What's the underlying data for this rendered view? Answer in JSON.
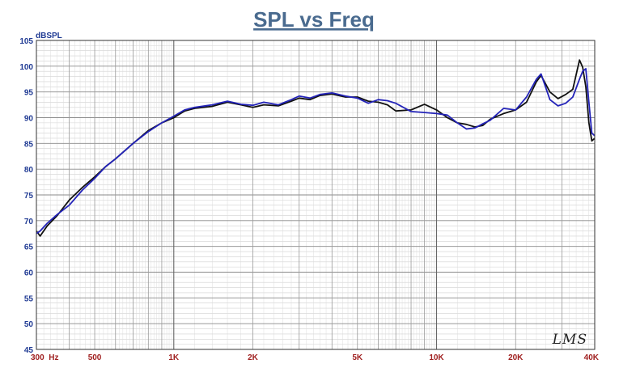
{
  "chart_data": {
    "type": "line",
    "title": "SPL vs Freq",
    "ylabel": "dBSPL",
    "xlabel": "",
    "x_scale": "log",
    "xlim": [
      300,
      40000
    ],
    "ylim": [
      45,
      105
    ],
    "y_ticks": [
      45,
      50,
      55,
      60,
      65,
      70,
      75,
      80,
      85,
      90,
      95,
      100,
      105
    ],
    "x_tick_labels": [
      {
        "value": 300,
        "label": "300  Hz"
      },
      {
        "value": 500,
        "label": "500"
      },
      {
        "value": 1000,
        "label": "1K"
      },
      {
        "value": 2000,
        "label": "2K"
      },
      {
        "value": 5000,
        "label": "5K"
      },
      {
        "value": 10000,
        "label": "10K"
      },
      {
        "value": 20000,
        "label": "20K"
      },
      {
        "value": 40000,
        "label": "40K"
      }
    ],
    "grid": true,
    "watermark": "LMS",
    "series": [
      {
        "color": "#111111",
        "points": [
          [
            300,
            68
          ],
          [
            310,
            67
          ],
          [
            330,
            69
          ],
          [
            360,
            71
          ],
          [
            400,
            74
          ],
          [
            450,
            76.5
          ],
          [
            500,
            78.5
          ],
          [
            550,
            80.5
          ],
          [
            600,
            82
          ],
          [
            700,
            85
          ],
          [
            800,
            87.5
          ],
          [
            900,
            89
          ],
          [
            1000,
            90
          ],
          [
            1100,
            91.3
          ],
          [
            1200,
            91.8
          ],
          [
            1400,
            92.2
          ],
          [
            1600,
            93
          ],
          [
            1800,
            92.5
          ],
          [
            2000,
            92
          ],
          [
            2200,
            92.5
          ],
          [
            2500,
            92.3
          ],
          [
            2800,
            93.2
          ],
          [
            3000,
            93.8
          ],
          [
            3300,
            93.5
          ],
          [
            3600,
            94.3
          ],
          [
            4000,
            94.6
          ],
          [
            4500,
            94
          ],
          [
            5000,
            94
          ],
          [
            5500,
            93.2
          ],
          [
            6000,
            93
          ],
          [
            6500,
            92.5
          ],
          [
            7000,
            91.3
          ],
          [
            8000,
            91.5
          ],
          [
            9000,
            92.6
          ],
          [
            10000,
            91.5
          ],
          [
            11000,
            90
          ],
          [
            12000,
            89
          ],
          [
            13000,
            88.7
          ],
          [
            14000,
            88.2
          ],
          [
            15000,
            88.5
          ],
          [
            16000,
            89.7
          ],
          [
            18000,
            90.8
          ],
          [
            20000,
            91.5
          ],
          [
            22000,
            93
          ],
          [
            24000,
            97
          ],
          [
            25000,
            98.2
          ],
          [
            27000,
            95
          ],
          [
            29000,
            93.7
          ],
          [
            31000,
            94.5
          ],
          [
            33000,
            95.5
          ],
          [
            35000,
            101.2
          ],
          [
            36000,
            99.8
          ],
          [
            37000,
            96
          ],
          [
            38000,
            89
          ],
          [
            39000,
            85.5
          ],
          [
            40000,
            86
          ]
        ]
      },
      {
        "color": "#2323b8",
        "points": [
          [
            300,
            67.5
          ],
          [
            310,
            68
          ],
          [
            330,
            69.5
          ],
          [
            360,
            71.2
          ],
          [
            400,
            73
          ],
          [
            450,
            76
          ],
          [
            500,
            78.2
          ],
          [
            550,
            80.5
          ],
          [
            600,
            82
          ],
          [
            700,
            85
          ],
          [
            800,
            87.3
          ],
          [
            900,
            89
          ],
          [
            1000,
            90.3
          ],
          [
            1100,
            91.5
          ],
          [
            1200,
            92
          ],
          [
            1400,
            92.5
          ],
          [
            1600,
            93.2
          ],
          [
            1800,
            92.6
          ],
          [
            2000,
            92.4
          ],
          [
            2200,
            93
          ],
          [
            2500,
            92.5
          ],
          [
            2800,
            93.5
          ],
          [
            3000,
            94.2
          ],
          [
            3300,
            93.8
          ],
          [
            3600,
            94.5
          ],
          [
            4000,
            94.8
          ],
          [
            4500,
            94.2
          ],
          [
            5000,
            93.8
          ],
          [
            5500,
            92.8
          ],
          [
            6000,
            93.5
          ],
          [
            6500,
            93.3
          ],
          [
            7000,
            92.8
          ],
          [
            8000,
            91.2
          ],
          [
            9000,
            91
          ],
          [
            10000,
            90.8
          ],
          [
            11000,
            90.5
          ],
          [
            12000,
            89
          ],
          [
            13000,
            87.8
          ],
          [
            14000,
            88
          ],
          [
            15000,
            88.8
          ],
          [
            16000,
            89.5
          ],
          [
            18000,
            91.8
          ],
          [
            20000,
            91.5
          ],
          [
            22000,
            94
          ],
          [
            24000,
            97.5
          ],
          [
            25000,
            98.5
          ],
          [
            27000,
            93.5
          ],
          [
            29000,
            92.3
          ],
          [
            31000,
            92.8
          ],
          [
            33000,
            94
          ],
          [
            35000,
            97.5
          ],
          [
            36000,
            99
          ],
          [
            37000,
            99.5
          ],
          [
            38000,
            93
          ],
          [
            39000,
            87
          ],
          [
            40000,
            86.5
          ]
        ]
      }
    ]
  }
}
